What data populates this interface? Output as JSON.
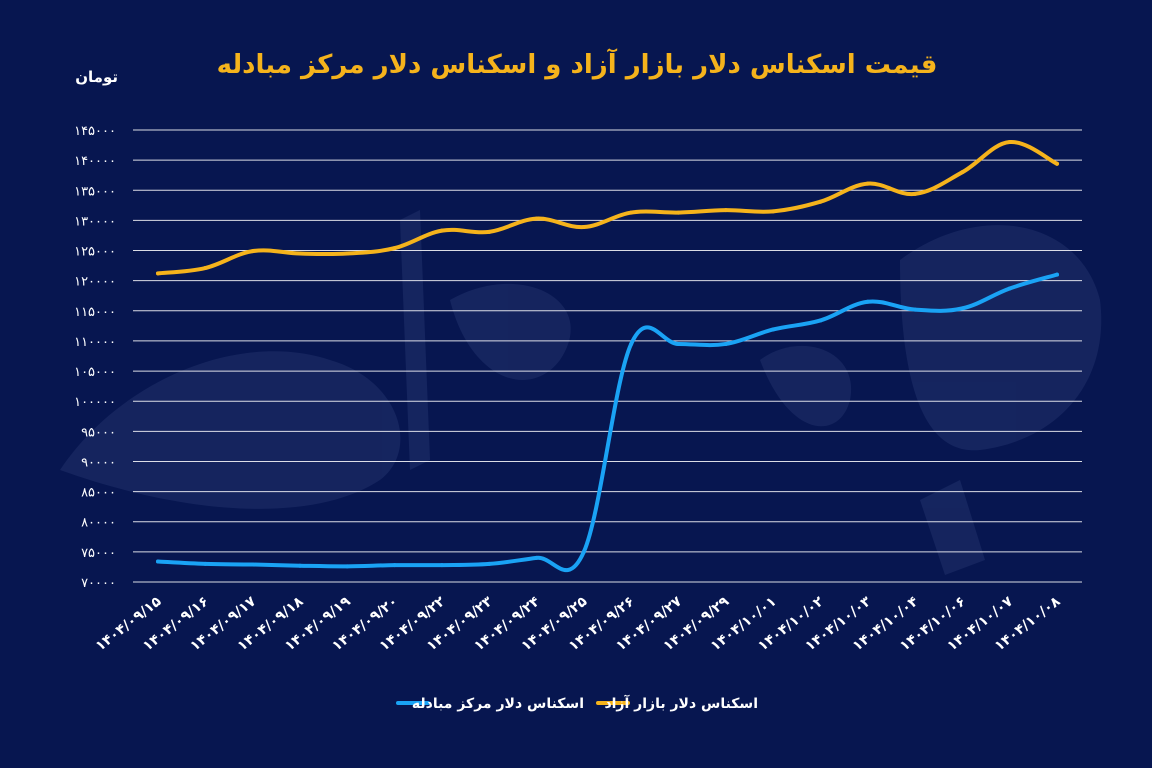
{
  "chart_data": {
    "type": "line",
    "title": "قیمت اسکناس دلار بازار آزاد و اسکناس دلار مرکز مبادله",
    "ylabel": "تومان",
    "xlabel": "",
    "ylim": [
      70000,
      145000
    ],
    "yticks": [
      70000,
      75000,
      80000,
      85000,
      90000,
      95000,
      100000,
      105000,
      110000,
      115000,
      120000,
      125000,
      130000,
      135000,
      140000,
      145000
    ],
    "ytick_labels": [
      "۷۰۰۰۰",
      "۷۵۰۰۰",
      "۸۰۰۰۰",
      "۸۵۰۰۰",
      "۹۰۰۰۰",
      "۹۵۰۰۰",
      "۱۰۰۰۰۰",
      "۱۰۵۰۰۰",
      "۱۱۰۰۰۰",
      "۱۱۵۰۰۰",
      "۱۲۰۰۰۰",
      "۱۲۵۰۰۰",
      "۱۳۰۰۰۰",
      "۱۳۵۰۰۰",
      "۱۴۰۰۰۰",
      "۱۴۵۰۰۰"
    ],
    "categories": [
      "۱۴۰۴/۰۹/۱۵",
      "۱۴۰۴/۰۹/۱۶",
      "۱۴۰۴/۰۹/۱۷",
      "۱۴۰۴/۰۹/۱۸",
      "۱۴۰۴/۰۹/۱۹",
      "۱۴۰۴/۰۹/۲۰",
      "۱۴۰۴/۰۹/۲۲",
      "۱۴۰۴/۰۹/۲۳",
      "۱۴۰۴/۰۹/۲۴",
      "۱۴۰۴/۰۹/۲۵",
      "۱۴۰۴/۰۹/۲۶",
      "۱۴۰۴/۰۹/۲۷",
      "۱۴۰۴/۰۹/۲۹",
      "۱۴۰۴/۱۰/۰۱",
      "۱۴۰۴/۱۰/۰۲",
      "۱۴۰۴/۱۰/۰۳",
      "۱۴۰۴/۱۰/۰۴",
      "۱۴۰۴/۱۰/۰۶",
      "۱۴۰۴/۱۰/۰۷",
      "۱۴۰۴/۱۰/۰۸"
    ],
    "series": [
      {
        "name": "اسکناس دلار بازار آزاد",
        "color": "#f5b31c",
        "values": [
          121200,
          122100,
          124900,
          124500,
          124500,
          125400,
          128300,
          128100,
          130300,
          128900,
          131300,
          131300,
          131700,
          131500,
          133100,
          136100,
          134400,
          138000,
          143000,
          139400
        ]
      },
      {
        "name": "اسکناس دلار مرکز مبادله",
        "color": "#1aa3f5",
        "values": [
          73400,
          73000,
          72900,
          72700,
          72600,
          72800,
          72800,
          73000,
          74000,
          75000,
          109500,
          109500,
          109500,
          111900,
          113400,
          116500,
          115200,
          115400,
          118700,
          121000
        ]
      }
    ],
    "grid": true,
    "legend_position": "bottom-center"
  }
}
